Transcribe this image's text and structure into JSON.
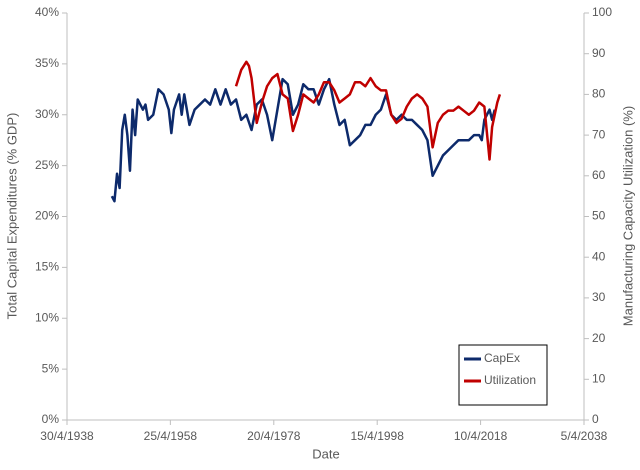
{
  "chart_data": {
    "type": "line",
    "xlabel": "Date",
    "ylabel": "Total Capital Expenditures (% GDP)",
    "y2label": "Manufacturing Capacity Utilization (%)",
    "xlim": [
      1938.33,
      2038.26
    ],
    "xticks": [
      {
        "value": 1938.33,
        "label": "30/4/1938"
      },
      {
        "value": 1958.31,
        "label": "25/4/1958"
      },
      {
        "value": 1978.3,
        "label": "20/4/1978"
      },
      {
        "value": 1998.29,
        "label": "15/4/1998"
      },
      {
        "value": 2018.27,
        "label": "10/4/2018"
      },
      {
        "value": 2038.26,
        "label": "5/4/2038"
      }
    ],
    "ylim": [
      0,
      40
    ],
    "yticks": [
      {
        "value": 0,
        "label": "0%"
      },
      {
        "value": 5,
        "label": "5%"
      },
      {
        "value": 10,
        "label": "10%"
      },
      {
        "value": 15,
        "label": "15%"
      },
      {
        "value": 20,
        "label": "20%"
      },
      {
        "value": 25,
        "label": "25%"
      },
      {
        "value": 30,
        "label": "30%"
      },
      {
        "value": 35,
        "label": "35%"
      },
      {
        "value": 40,
        "label": "40%"
      }
    ],
    "y2lim": [
      0,
      100
    ],
    "y2ticks": [
      0,
      10,
      20,
      30,
      40,
      50,
      60,
      70,
      80,
      90,
      100
    ],
    "grid": false,
    "legend": "lower right",
    "series": [
      {
        "name": "CapEx",
        "color": "#0d2a6b",
        "axis": "y",
        "x": [
          1947,
          1947.5,
          1948,
          1948.5,
          1949,
          1949.5,
          1950,
          1950.5,
          1951,
          1951.5,
          1952,
          1953,
          1953.5,
          1954,
          1955,
          1956,
          1957,
          1958,
          1958.5,
          1959,
          1960,
          1960.5,
          1961,
          1962,
          1963,
          1964,
          1965,
          1966,
          1967,
          1968,
          1969,
          1970,
          1971,
          1972,
          1973,
          1974,
          1975,
          1976,
          1977,
          1978,
          1979,
          1980,
          1981,
          1982,
          1983,
          1984,
          1985,
          1986,
          1987,
          1988,
          1989,
          1990,
          1991,
          1992,
          1993,
          1994,
          1995,
          1996,
          1997,
          1998,
          1999,
          2000,
          2001,
          2002,
          2003,
          2004,
          2005,
          2006,
          2007,
          2008,
          2009,
          2010,
          2011,
          2012,
          2013,
          2014,
          2015,
          2016,
          2017,
          2018,
          2018.5,
          2019,
          2020,
          2020.5,
          2021
        ],
        "values": [
          22,
          21.5,
          24.2,
          22.8,
          28.5,
          30,
          28,
          24.5,
          30.5,
          28,
          31.5,
          30.5,
          31,
          29.5,
          30,
          32.5,
          32,
          30.5,
          28.2,
          30.5,
          32,
          30,
          32,
          29,
          30.5,
          31,
          31.5,
          31,
          32.5,
          31,
          32.5,
          31,
          31.5,
          29.5,
          30,
          28.5,
          31,
          31.5,
          30,
          27.5,
          30.5,
          33.5,
          33,
          30,
          31,
          33,
          32.5,
          32.5,
          31,
          32.5,
          33.5,
          31,
          29,
          29.5,
          27,
          27.5,
          28,
          29,
          29,
          30,
          30.5,
          32,
          30,
          29.5,
          30,
          29.5,
          29.5,
          29,
          28.5,
          27.5,
          24,
          25,
          26,
          26.5,
          27,
          27.5,
          27.5,
          27.5,
          28,
          28,
          27.5,
          29.5,
          30.5,
          29.5,
          30.5
        ]
      },
      {
        "name": "Utilization",
        "color": "#c00000",
        "axis": "y2",
        "x": [
          1971,
          1972,
          1973,
          1973.5,
          1974,
          1975,
          1976,
          1977,
          1978,
          1979,
          1980,
          1981,
          1982,
          1983,
          1984,
          1985,
          1986,
          1987,
          1988,
          1989,
          1990,
          1991,
          1992,
          1993,
          1994,
          1995,
          1996,
          1997,
          1998,
          1999,
          2000,
          2001,
          2002,
          2003,
          2004,
          2005,
          2006,
          2007,
          2008,
          2009,
          2010,
          2011,
          2012,
          2013,
          2014,
          2015,
          2016,
          2017,
          2018,
          2019,
          2020,
          2020.5,
          2021,
          2021.5,
          2022
        ],
        "values": [
          82,
          86,
          88,
          87,
          84,
          73,
          78,
          82,
          84,
          85,
          80,
          79,
          71,
          75,
          80,
          79,
          78,
          80,
          83,
          83,
          81,
          78,
          79,
          80,
          83,
          83,
          82,
          84,
          82,
          81,
          81,
          75,
          73,
          74,
          77,
          79,
          80,
          79,
          77,
          67,
          73,
          75,
          76,
          76,
          77,
          76,
          75,
          76,
          78,
          77,
          64,
          72,
          75,
          78,
          80
        ]
      }
    ]
  }
}
